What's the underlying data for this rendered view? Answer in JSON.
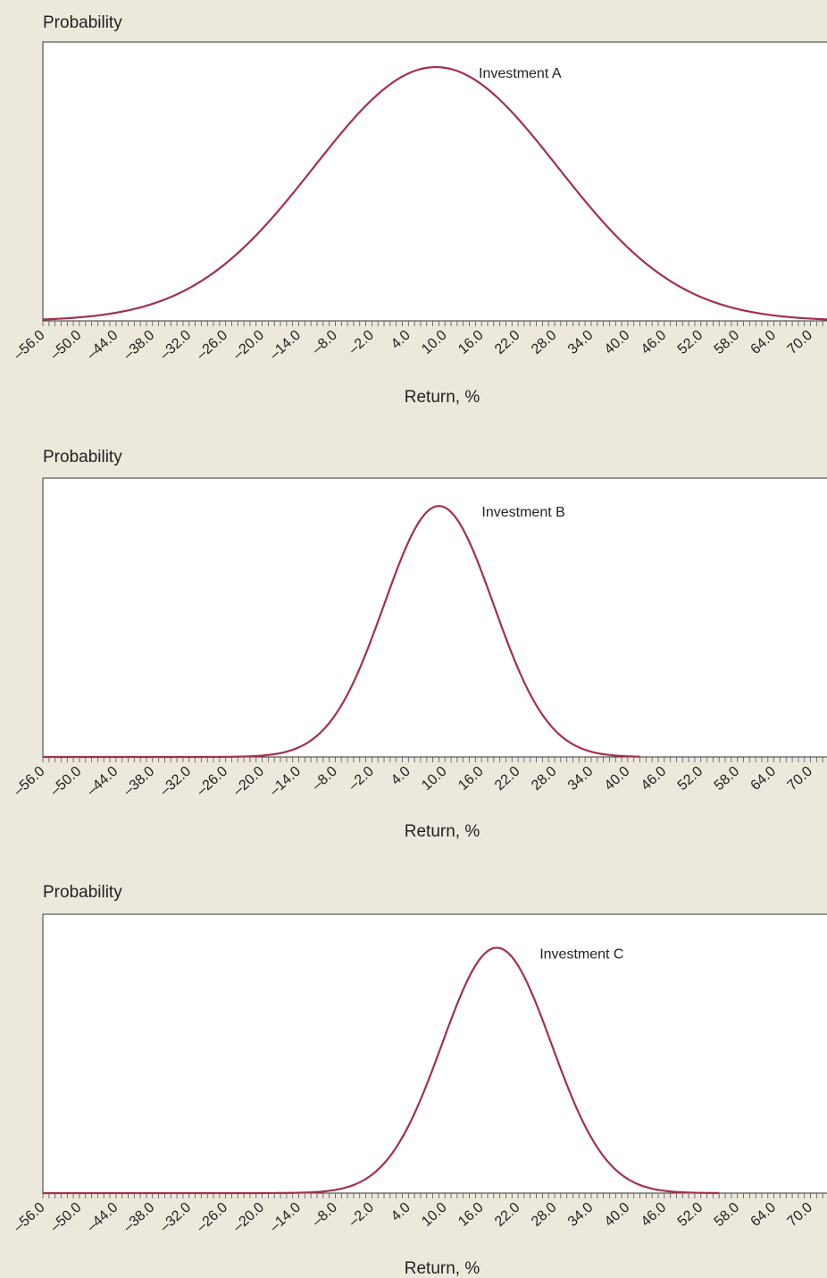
{
  "chart_data": [
    {
      "type": "line",
      "ylabel": "Probability",
      "xlabel": "Return, %",
      "annotation": "Investment A",
      "x_range": [
        -56.0,
        73.0
      ],
      "tick_labels": [
        "–56.0",
        "–50.0",
        "–44.0",
        "–38.0",
        "–32.0",
        "–26.0",
        "–20.0",
        "–14.0",
        "–8.0",
        "–2.0",
        "4.0",
        "10.0",
        "16.0",
        "22.0",
        "28.0",
        "34.0",
        "40.0",
        "46.0",
        "52.0",
        "58.0",
        "64.0",
        "70.0"
      ],
      "tick_values": [
        -56,
        -50,
        -44,
        -38,
        -32,
        -26,
        -20,
        -14,
        -8,
        -2,
        4,
        10,
        16,
        22,
        28,
        34,
        40,
        46,
        52,
        58,
        64,
        70
      ],
      "series": [
        {
          "color": "#A3304E",
          "distribution": "normal",
          "mean": 8.5,
          "std_dev": 20.0,
          "x_start": -56.0,
          "x_end": 73.0,
          "peak": 0.91
        }
      ]
    },
    {
      "type": "line",
      "ylabel": "Probability",
      "xlabel": "Return, %",
      "annotation": "Investment B",
      "x_range": [
        -56.0,
        73.0
      ],
      "tick_labels": [
        "–56.0",
        "–50.0",
        "–44.0",
        "–38.0",
        "–32.0",
        "–26.0",
        "–20.0",
        "–14.0",
        "–8.0",
        "–2.0",
        "4.0",
        "10.0",
        "16.0",
        "22.0",
        "28.0",
        "34.0",
        "40.0",
        "46.0",
        "52.0",
        "58.0",
        "64.0",
        "70.0"
      ],
      "tick_values": [
        -56,
        -50,
        -44,
        -38,
        -32,
        -26,
        -20,
        -14,
        -8,
        -2,
        4,
        10,
        16,
        22,
        28,
        34,
        40,
        46,
        52,
        58,
        64,
        70
      ],
      "series": [
        {
          "color": "#A3304E",
          "distribution": "normal",
          "mean": 9.0,
          "std_dev": 9.0,
          "x_start": -56.0,
          "x_end": 42.0,
          "peak": 0.9
        }
      ]
    },
    {
      "type": "line",
      "ylabel": "Probability",
      "xlabel": "Return, %",
      "annotation": "Investment C",
      "x_range": [
        -56.0,
        73.0
      ],
      "tick_labels": [
        "–56.0",
        "–50.0",
        "–44.0",
        "–38.0",
        "–32.0",
        "–26.0",
        "–20.0",
        "–14.0",
        "–8.0",
        "–2.0",
        "4.0",
        "10.0",
        "16.0",
        "22.0",
        "28.0",
        "34.0",
        "40.0",
        "46.0",
        "52.0",
        "58.0",
        "64.0",
        "70.0"
      ],
      "tick_values": [
        -56,
        -50,
        -44,
        -38,
        -32,
        -26,
        -20,
        -14,
        -8,
        -2,
        4,
        10,
        16,
        22,
        28,
        34,
        40,
        46,
        52,
        58,
        64,
        70
      ],
      "series": [
        {
          "color": "#A3304E",
          "distribution": "normal",
          "mean": 18.5,
          "std_dev": 9.0,
          "x_start": -56.0,
          "x_end": 55.0,
          "peak": 0.88
        }
      ]
    }
  ]
}
